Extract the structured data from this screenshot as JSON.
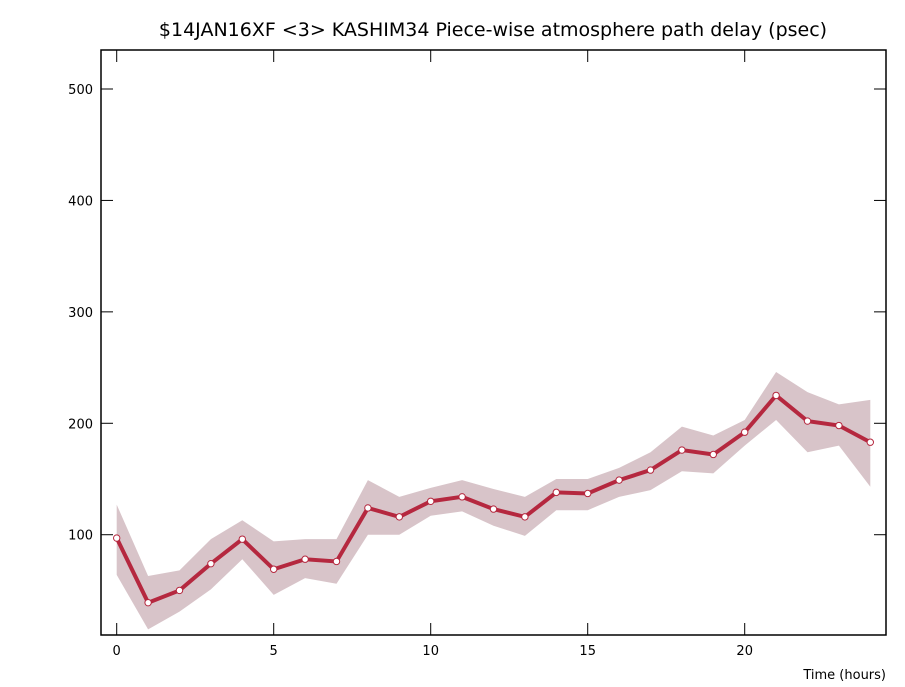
{
  "chart_data": {
    "type": "line",
    "title": "$14JAN16XF <3>   KASHIM34  Piece-wise atmosphere path delay (psec)",
    "xlabel": "Time (hours)",
    "x": [
      0,
      1,
      2,
      3,
      4,
      5,
      6,
      7,
      8,
      9,
      10,
      11,
      12,
      13,
      14,
      15,
      16,
      17,
      18,
      19,
      20,
      21,
      22,
      23,
      24
    ],
    "series": [
      {
        "color": "#b5283f",
        "band_color": "#d8c4c9",
        "values": [
          97,
          39,
          50,
          74,
          96,
          69,
          78,
          76,
          124,
          116,
          130,
          134,
          123,
          116,
          138,
          137,
          149,
          158,
          176,
          172,
          192,
          225,
          202,
          198,
          183
        ],
        "upper": [
          127,
          63,
          68,
          96,
          113,
          94,
          96,
          96,
          149,
          134,
          142,
          149,
          141,
          134,
          150,
          150,
          160,
          174,
          197,
          189,
          203,
          246,
          228,
          217,
          221
        ],
        "lower": [
          64,
          15,
          31,
          51,
          78,
          46,
          61,
          56,
          100,
          100,
          117,
          121,
          108,
          99,
          122,
          122,
          134,
          140,
          157,
          155,
          180,
          203,
          174,
          180,
          143
        ]
      }
    ],
    "xlim": [
      -0.5,
      24.5
    ],
    "ylim": [
      10,
      535
    ],
    "xticks": [
      0,
      5,
      10,
      15,
      20
    ],
    "yticks": [
      100,
      200,
      300,
      400,
      500
    ]
  }
}
